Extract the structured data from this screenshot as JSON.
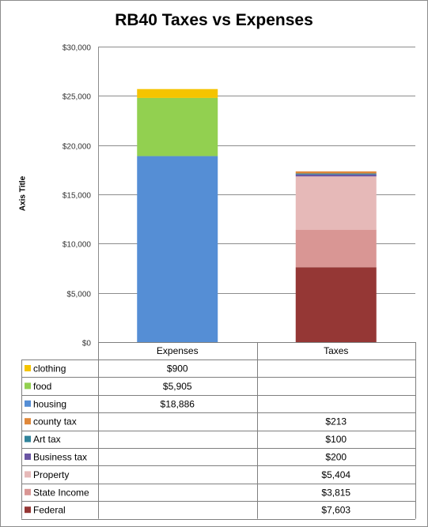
{
  "chart_data": {
    "type": "bar",
    "stacked": true,
    "title": "RB40 Taxes vs Expenses",
    "ylabel": "Axis Title",
    "xlabel": "",
    "ylim": [
      0,
      30000
    ],
    "yticks": [
      0,
      5000,
      10000,
      15000,
      20000,
      25000,
      30000
    ],
    "ytick_labels": [
      "$0",
      "$5,000",
      "$10,000",
      "$15,000",
      "$20,000",
      "$25,000",
      "$30,000"
    ],
    "grid": true,
    "legend_placement": "data-table-below",
    "categories": [
      "Expenses",
      "Taxes"
    ],
    "series": [
      {
        "name": "clothing",
        "color": "#f5c400",
        "values": [
          900,
          null
        ],
        "labels": [
          "$900",
          ""
        ]
      },
      {
        "name": "food",
        "color": "#92d050",
        "values": [
          5905,
          null
        ],
        "labels": [
          "$5,905",
          ""
        ]
      },
      {
        "name": "housing",
        "color": "#558ed5",
        "values": [
          18886,
          null
        ],
        "labels": [
          "$18,886",
          ""
        ]
      },
      {
        "name": "county tax",
        "color": "#e0883a",
        "values": [
          null,
          213
        ],
        "labels": [
          "",
          "$213"
        ]
      },
      {
        "name": "Art tax",
        "color": "#31849b",
        "values": [
          null,
          100
        ],
        "labels": [
          "",
          "$100"
        ]
      },
      {
        "name": "Business tax",
        "color": "#6a55a3",
        "values": [
          null,
          200
        ],
        "labels": [
          "",
          "$200"
        ]
      },
      {
        "name": "Property",
        "color": "#e6b9b8",
        "values": [
          null,
          5404
        ],
        "labels": [
          "",
          "$5,404"
        ]
      },
      {
        "name": "State Income",
        "color": "#d99694",
        "values": [
          null,
          3815
        ],
        "labels": [
          "",
          "$3,815"
        ]
      },
      {
        "name": "Federal",
        "color": "#953735",
        "values": [
          null,
          7603
        ],
        "labels": [
          "",
          "$7,603"
        ]
      }
    ]
  }
}
